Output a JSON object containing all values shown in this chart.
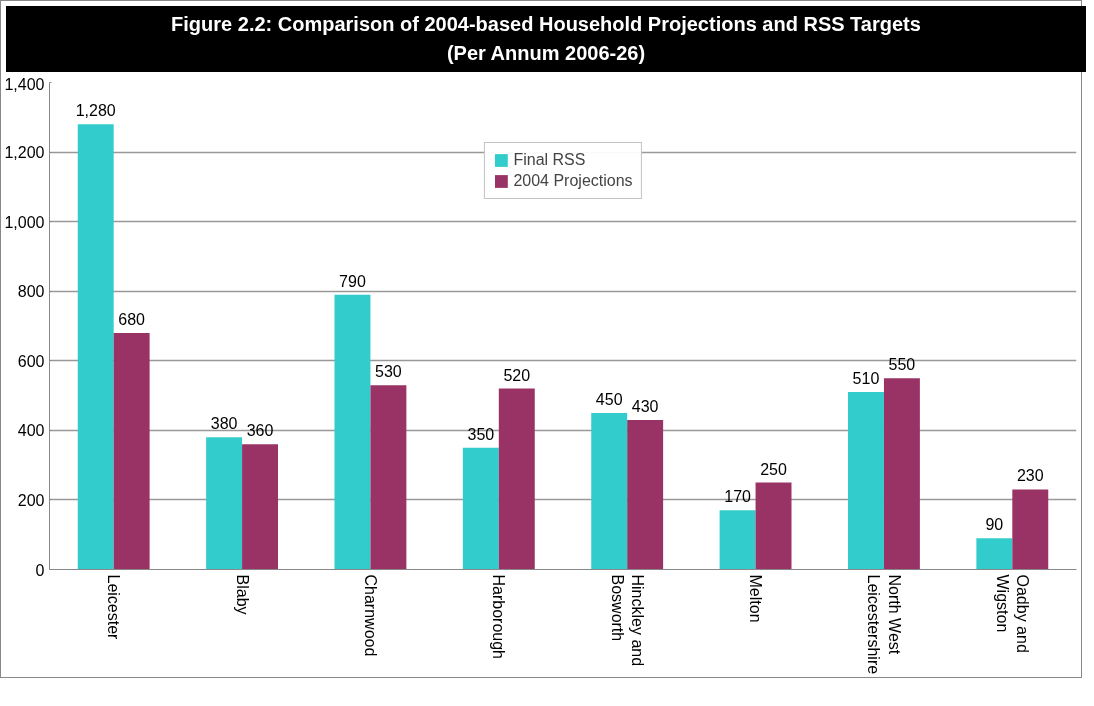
{
  "chart_data": {
    "type": "bar",
    "title": "Figure 2.2: Comparison of 2004-based Household Projections and RSS Targets (Per Annum 2006-26)",
    "categories": [
      "Leicester",
      "Blaby",
      "Charnwood",
      "Harborough",
      "Hinckley and Bosworth",
      "Melton",
      "North West Leicestershire",
      "Oadby and Wigston"
    ],
    "series": [
      {
        "name": "Final RSS",
        "color": "#33cccc",
        "values": [
          1280,
          380,
          790,
          350,
          450,
          170,
          510,
          90
        ],
        "value_labels": [
          "1,280",
          "380",
          "790",
          "350",
          "450",
          "170",
          "510",
          "90"
        ]
      },
      {
        "name": "2004 Projections",
        "color": "#993366",
        "values": [
          680,
          360,
          530,
          520,
          430,
          250,
          550,
          230
        ],
        "value_labels": [
          "680",
          "360",
          "530",
          "520",
          "430",
          "250",
          "550",
          "230"
        ]
      }
    ],
    "ylim": [
      0,
      1400
    ],
    "yticks": [
      0,
      200,
      400,
      600,
      800,
      {
        "value": 1000,
        "label": "1,000"
      },
      {
        "value": 1200,
        "label": "1,200"
      },
      {
        "value": 1400,
        "label": "1,400"
      }
    ],
    "grid": "y",
    "legend": "top"
  }
}
